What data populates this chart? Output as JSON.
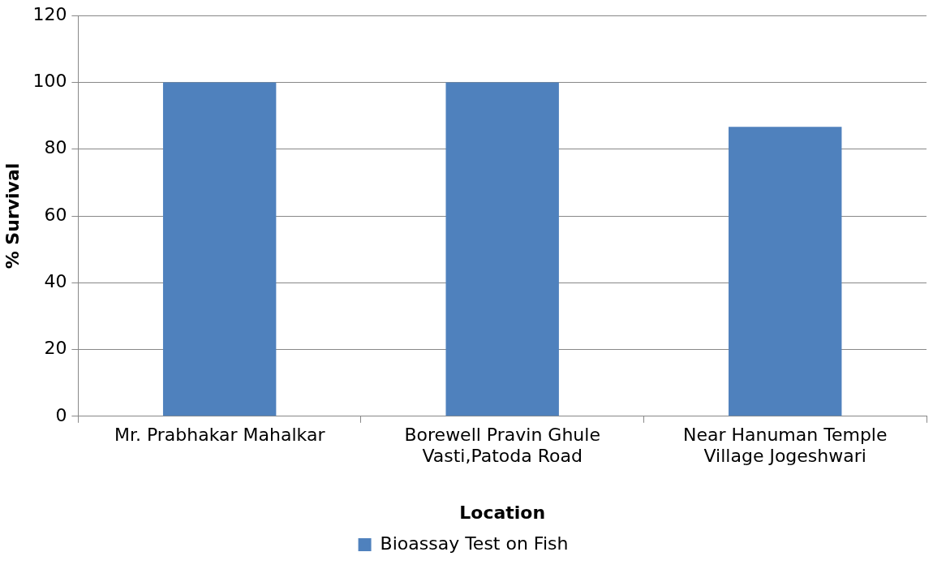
{
  "chart_data": {
    "type": "bar",
    "xlabel": "Location",
    "ylabel": "% Survival",
    "categories": [
      "Mr. Prabhakar Mahalkar",
      "Borewell Pravin Ghule\nVasti,Patoda Road",
      "Near Hanuman Temple\nVillage Jogeshwari"
    ],
    "series": [
      {
        "name": "Bioassay Test on Fish",
        "color": "#4f81bd",
        "values": [
          100,
          100,
          86.7
        ]
      }
    ],
    "ylim": [
      0,
      120
    ],
    "yticks": [
      0,
      20,
      40,
      60,
      80,
      100,
      120
    ],
    "grid": "y",
    "legend": "bottom"
  }
}
